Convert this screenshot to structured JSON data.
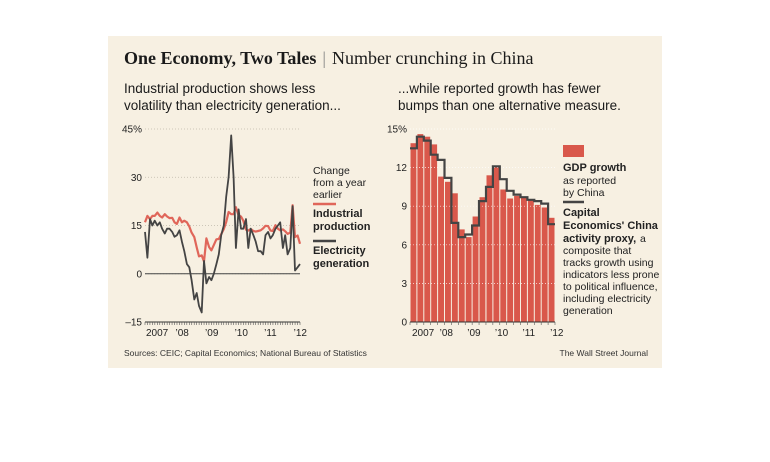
{
  "header": {
    "title": "One Economy, Two Tales",
    "separator": "|",
    "subtitle": "Number crunching in China"
  },
  "chart_data": [
    {
      "type": "line",
      "title": "Industrial production shows less volatility than electricity generation...",
      "title_lines": [
        "Industrial production shows less",
        "volatility than electricity generation..."
      ],
      "legend_note_lines": [
        "Change",
        "from a year",
        "earlier"
      ],
      "ylim": [
        -15,
        45
      ],
      "yticks": [
        -15,
        0,
        15,
        30,
        45
      ],
      "ytick_labels": [
        "–15",
        "0",
        "15",
        "30",
        "45%"
      ],
      "xlim": [
        2007.0,
        2012.25
      ],
      "xticks": [
        2007,
        2008,
        2009,
        2010,
        2011,
        2012
      ],
      "xtick_labels": [
        "2007",
        "’08",
        "’09",
        "’10",
        "’11",
        "’12"
      ],
      "grid": true,
      "series": [
        {
          "name": "Industrial production",
          "legend_lines": [
            "Industrial",
            "production"
          ],
          "color": "#e0665a",
          "x": [
            2007.0,
            2007.08,
            2007.17,
            2007.25,
            2007.33,
            2007.42,
            2007.5,
            2007.58,
            2007.67,
            2007.75,
            2007.83,
            2007.92,
            2008.0,
            2008.08,
            2008.17,
            2008.25,
            2008.33,
            2008.42,
            2008.5,
            2008.58,
            2008.67,
            2008.75,
            2008.83,
            2008.92,
            2009.0,
            2009.08,
            2009.17,
            2009.25,
            2009.33,
            2009.42,
            2009.5,
            2009.58,
            2009.67,
            2009.75,
            2009.83,
            2009.92,
            2010.0,
            2010.08,
            2010.17,
            2010.25,
            2010.33,
            2010.42,
            2010.5,
            2010.58,
            2010.67,
            2010.75,
            2010.83,
            2010.92,
            2011.0,
            2011.08,
            2011.17,
            2011.25,
            2011.33,
            2011.42,
            2011.5,
            2011.58,
            2011.67,
            2011.75,
            2011.83,
            2011.92,
            2012.0,
            2012.08,
            2012.17,
            2012.25
          ],
          "values": [
            16,
            18,
            17,
            18,
            18,
            19,
            18,
            17.5,
            18.5,
            17.8,
            17.3,
            17.4,
            16,
            15.5,
            17.5,
            16,
            16.5,
            16,
            14.7,
            12.8,
            11.4,
            8.2,
            5.4,
            5.7,
            3.8,
            11,
            8.3,
            7.3,
            8.9,
            10.7,
            10.8,
            12.3,
            13.9,
            16.1,
            19.2,
            18.5,
            18.5,
            20.7,
            18.1,
            17.8,
            16.5,
            13.7,
            13.4,
            13.9,
            13.3,
            13.1,
            13.3,
            13.5,
            14.1,
            14.9,
            14.8,
            13.4,
            13.3,
            15.1,
            14,
            13.5,
            13.8,
            13.2,
            12.4,
            12.8,
            21.3,
            11.4,
            11.9,
            9.3
          ]
        },
        {
          "name": "Electricity generation",
          "legend_lines": [
            "Electricity",
            "generation"
          ],
          "color": "#444444",
          "x": [
            2007.0,
            2007.08,
            2007.17,
            2007.25,
            2007.33,
            2007.42,
            2007.5,
            2007.58,
            2007.67,
            2007.75,
            2007.83,
            2007.92,
            2008.0,
            2008.08,
            2008.17,
            2008.25,
            2008.33,
            2008.42,
            2008.5,
            2008.58,
            2008.67,
            2008.75,
            2008.83,
            2008.92,
            2009.0,
            2009.08,
            2009.17,
            2009.25,
            2009.33,
            2009.42,
            2009.5,
            2009.58,
            2009.67,
            2009.75,
            2009.83,
            2009.92,
            2010.0,
            2010.08,
            2010.17,
            2010.25,
            2010.33,
            2010.42,
            2010.5,
            2010.58,
            2010.67,
            2010.75,
            2010.83,
            2010.92,
            2011.0,
            2011.08,
            2011.17,
            2011.25,
            2011.33,
            2011.42,
            2011.5,
            2011.58,
            2011.67,
            2011.75,
            2011.83,
            2011.92,
            2012.0,
            2012.08,
            2012.17,
            2012.25
          ],
          "values": [
            13,
            5,
            17,
            15,
            16.5,
            15,
            16,
            14,
            12.5,
            14,
            14,
            13,
            11.5,
            12,
            13.5,
            10,
            7,
            3,
            2,
            -2,
            -8,
            -6,
            -10,
            -12,
            4,
            -3,
            -1,
            -2,
            0,
            3,
            6,
            12,
            15,
            24,
            30,
            43,
            30,
            8,
            20,
            14,
            14,
            17,
            8,
            14,
            12,
            10,
            7,
            7,
            6,
            12,
            13,
            11,
            12,
            14,
            15,
            16,
            8,
            12,
            6,
            8,
            21,
            1,
            2,
            3
          ]
        }
      ]
    },
    {
      "type": "bar",
      "title": "...while reported growth has fewer bumps than one alternative measure.",
      "title_lines": [
        "...while reported growth has fewer",
        "bumps than one alternative measure."
      ],
      "ylim": [
        0,
        15
      ],
      "yticks": [
        0,
        3,
        6,
        9,
        12,
        15
      ],
      "ytick_labels": [
        "0",
        "3",
        "6",
        "9",
        "12",
        "15%"
      ],
      "xtick_labels": [
        "2007",
        "’08",
        "’09",
        "’10",
        "’11",
        "’12"
      ],
      "grid": true,
      "categories": [
        "2007 Q1",
        "2007 Q2",
        "2007 Q3",
        "2007 Q4",
        "2008 Q1",
        "2008 Q2",
        "2008 Q3",
        "2008 Q4",
        "2009 Q1",
        "2009 Q2",
        "2009 Q3",
        "2009 Q4",
        "2010 Q1",
        "2010 Q2",
        "2010 Q3",
        "2010 Q4",
        "2011 Q1",
        "2011 Q2",
        "2011 Q3",
        "2011 Q4",
        "2012 Q1"
      ],
      "series": [
        {
          "name": "GDP growth",
          "legend_lines": [
            "GDP growth"
          ],
          "note_lines": [
            "as reported",
            "by China"
          ],
          "color": "#d9584b",
          "values": [
            13.9,
            14.6,
            14.4,
            13.8,
            11.3,
            10.9,
            10.0,
            7.2,
            6.6,
            8.2,
            9.7,
            11.4,
            12.1,
            10.3,
            9.6,
            9.8,
            9.7,
            9.5,
            9.1,
            8.9,
            8.1
          ]
        },
        {
          "name": "Capital Economics' China activity proxy,",
          "legend_lines": [
            "Capital",
            "Economics' China",
            "activity proxy,"
          ],
          "note_lines": [
            "a",
            "composite that",
            "tracks growth using",
            "indicators less prone",
            "to political influence,",
            "including electricity",
            "generation"
          ],
          "color": "#444444",
          "values": [
            13.5,
            14.4,
            14.1,
            13.0,
            12.6,
            11.2,
            7.7,
            6.6,
            6.8,
            7.5,
            9.4,
            10.5,
            12.1,
            11.1,
            10.2,
            9.9,
            9.7,
            9.5,
            9.4,
            9.2,
            7.6
          ]
        }
      ]
    }
  ],
  "footer": {
    "sources": "Sources: CEIC; Capital Economics; National Bureau of Statistics",
    "credit": "The Wall Street Journal"
  }
}
